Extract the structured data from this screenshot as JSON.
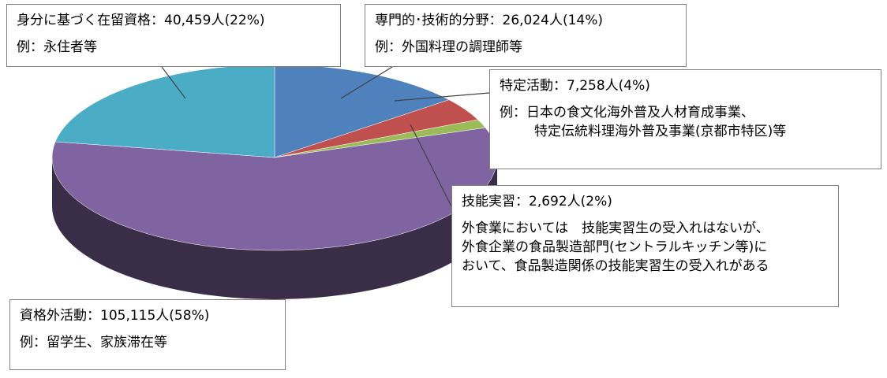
{
  "chart_data": {
    "type": "pie3d",
    "categories": [
      "専門的･技術的分野：",
      "特定活動：",
      "技能実習：",
      "資格外活動：",
      "身分に基づく在留資格："
    ],
    "values": [
      26024,
      7258,
      2692,
      105115,
      40459
    ],
    "value_labels": [
      "26,024人(14%)",
      "7,258人(4%)",
      "2,692人(2%)",
      "105,115人(58%)",
      "40,459人(22%)"
    ],
    "colors": [
      "#4f81bd",
      "#c0504d",
      "#9bbb59",
      "#8064a2",
      "#4bacc6"
    ],
    "notes": [
      [
        "例：外国料理の調理師等"
      ],
      [
        "例：日本の食文化海外普及人材育成事業、",
        "特定伝統料理海外普及事業(京都市特区)等"
      ],
      [
        "外食業においては　技能実習生の受入れはないが、",
        "外食企業の食品製造部門(セントラルキッチン等)に",
        "おいて、食品製造関係の技能実習生の受入れがある"
      ],
      [
        "例：留学生、家族滞在等"
      ],
      [
        "例：永住者等"
      ]
    ]
  }
}
